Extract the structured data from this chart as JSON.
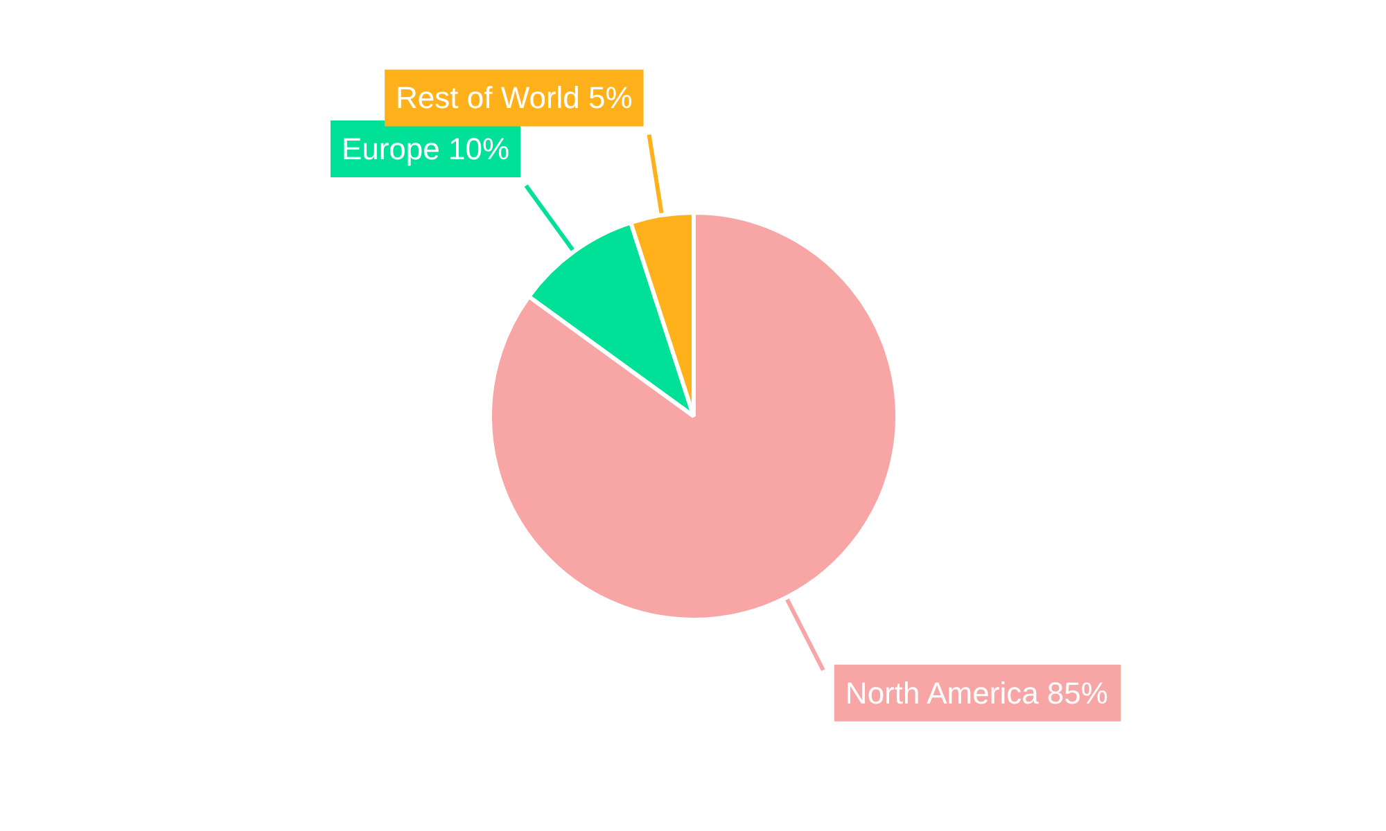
{
  "chart_data": {
    "type": "pie",
    "categories": [
      "North America",
      "Europe",
      "Rest of World"
    ],
    "values": [
      85,
      10,
      5
    ],
    "colors": [
      "#f8a5a6",
      "#00e096",
      "#ffb11b"
    ],
    "value_labels": [
      "85%",
      "10%",
      "5%"
    ]
  }
}
